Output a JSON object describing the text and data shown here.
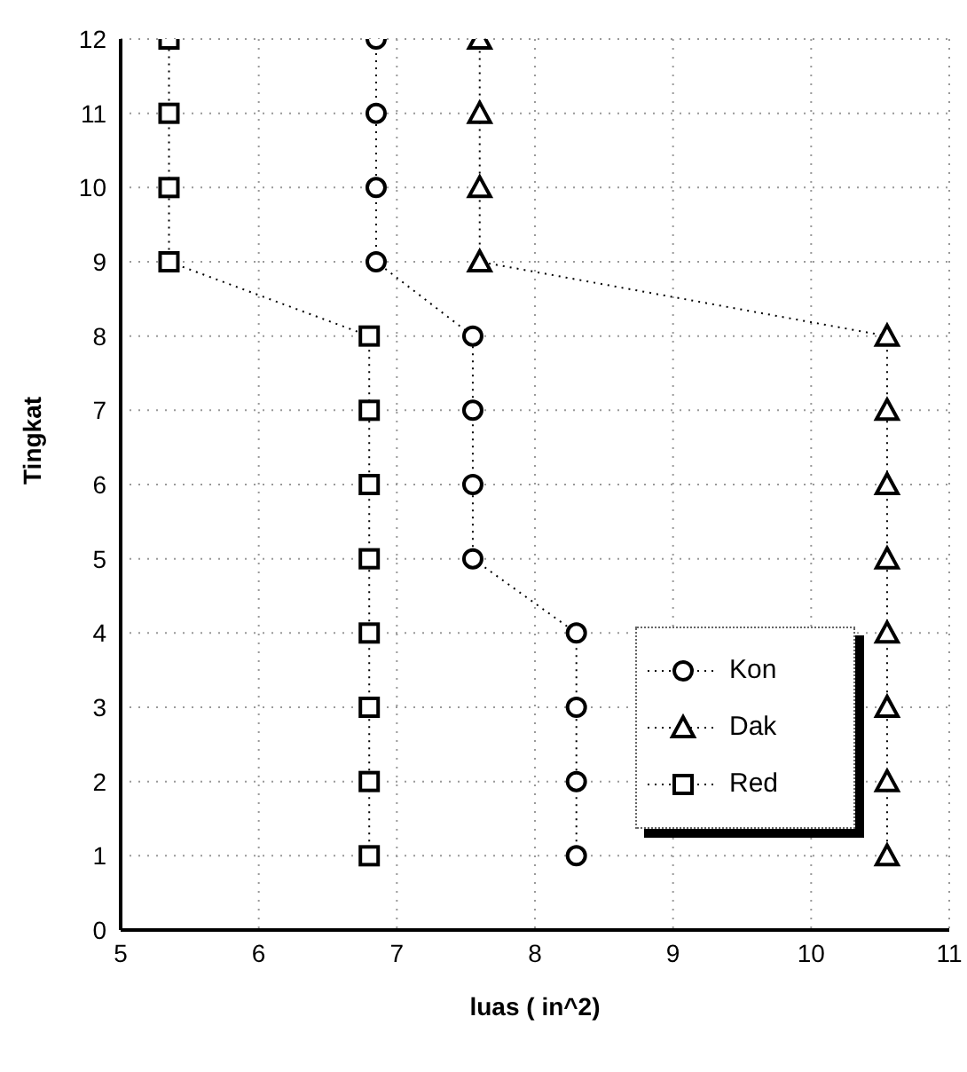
{
  "chart_data": {
    "type": "line",
    "xlabel": "luas ( in^2)",
    "ylabel": "Tingkat",
    "xlim": [
      5,
      11
    ],
    "xticks": [
      5,
      6,
      7,
      8,
      9,
      10,
      11
    ],
    "ylim": [
      0,
      12
    ],
    "yticks": [
      0,
      1,
      2,
      3,
      4,
      5,
      6,
      7,
      8,
      9,
      10,
      11,
      12
    ],
    "grid": true,
    "legend": "bottom right",
    "line_style": "dotted",
    "series": [
      {
        "name": "Kon",
        "color": "#000000",
        "marker": "circle",
        "x": [
          8.3,
          8.3,
          8.3,
          8.3,
          7.55,
          7.55,
          7.55,
          7.55,
          6.85,
          6.85,
          6.85,
          6.85
        ],
        "values": [
          1,
          2,
          3,
          4,
          5,
          6,
          7,
          8,
          9,
          10,
          11,
          12
        ]
      },
      {
        "name": "Dak",
        "color": "#000000",
        "marker": "triangle",
        "x": [
          10.55,
          10.55,
          10.55,
          10.55,
          10.55,
          10.55,
          10.55,
          10.55,
          7.6,
          7.6,
          7.6,
          7.6
        ],
        "values": [
          1,
          2,
          3,
          4,
          5,
          6,
          7,
          8,
          9,
          10,
          11,
          12
        ]
      },
      {
        "name": "Red",
        "color": "#000000",
        "marker": "square",
        "x": [
          6.8,
          6.8,
          6.8,
          6.8,
          6.8,
          6.8,
          6.8,
          6.8,
          5.35,
          5.35,
          5.35,
          5.35
        ],
        "values": [
          1,
          2,
          3,
          4,
          5,
          6,
          7,
          8,
          9,
          10,
          11,
          12
        ]
      }
    ]
  }
}
